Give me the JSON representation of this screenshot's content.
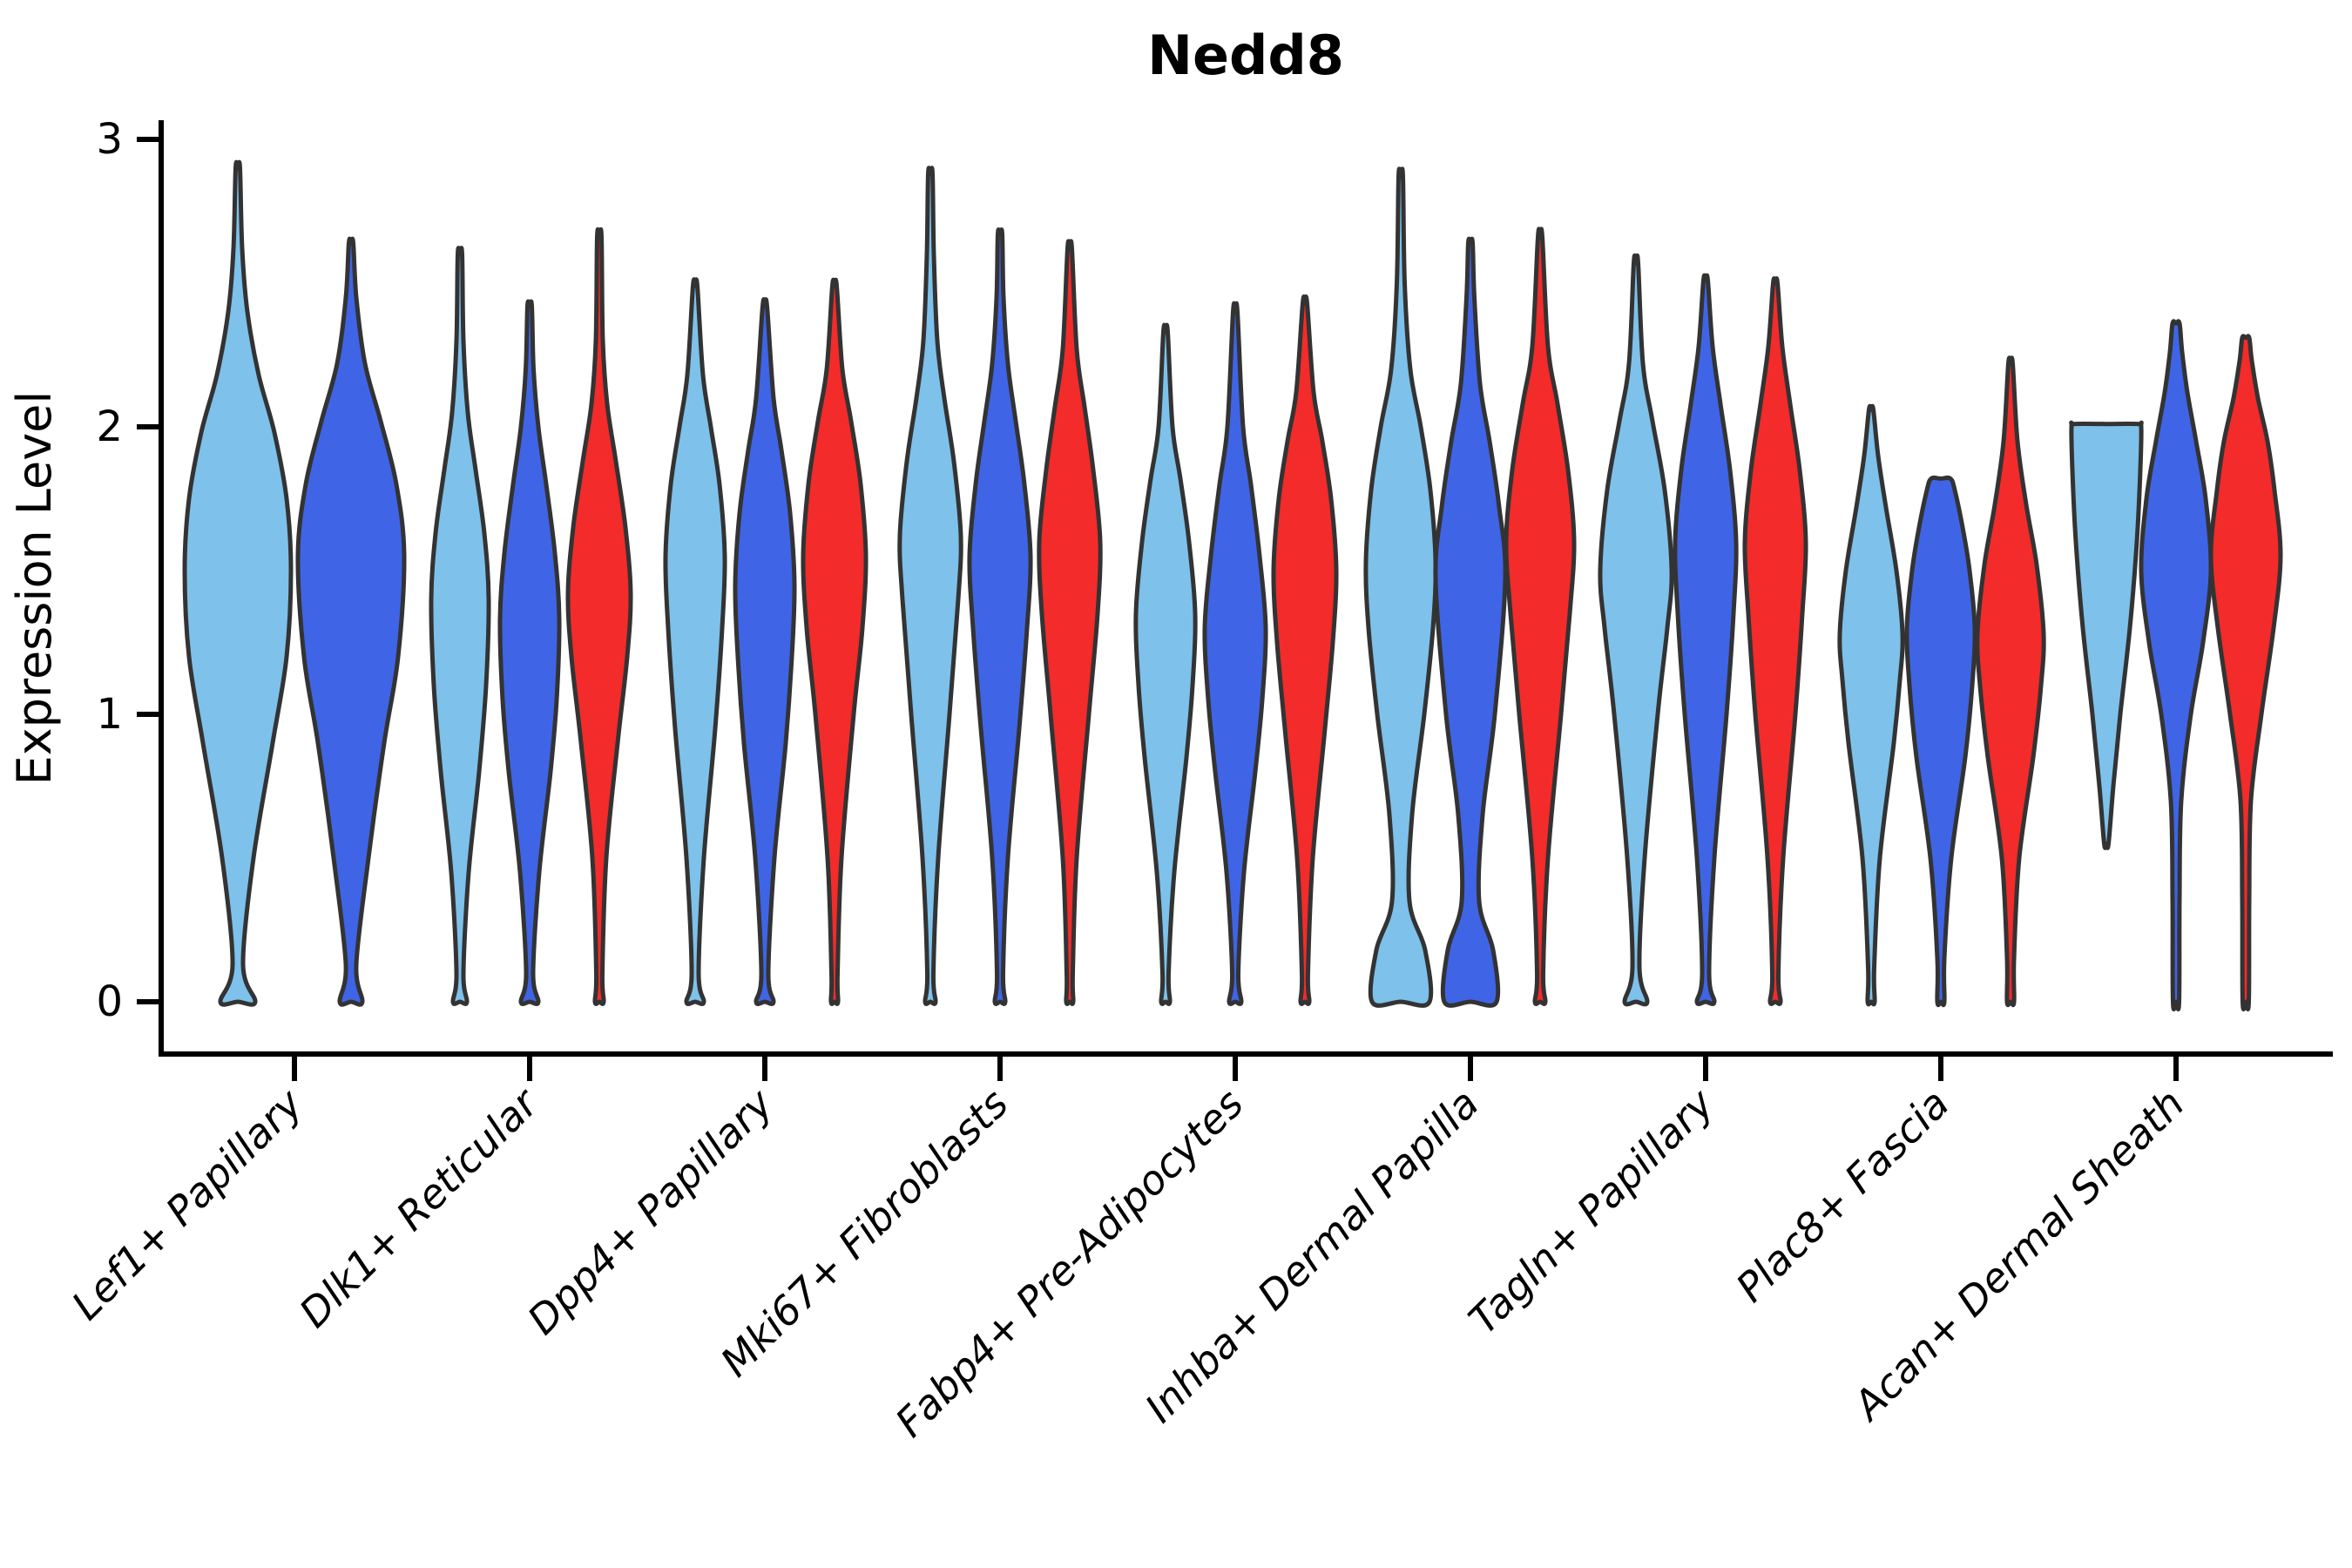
{
  "title": "Nedd8",
  "y_axis": {
    "label": "Expression Level",
    "ticks": [
      0,
      1,
      2,
      3
    ]
  },
  "chart_data": {
    "type": "violin",
    "title": "Nedd8",
    "xlabel": "",
    "ylabel": "Expression Level",
    "ylim": [
      0,
      3
    ],
    "yticks": [
      0,
      1,
      2,
      3
    ],
    "grid": false,
    "legend": "none",
    "categories": [
      "Lef1+ Papillary",
      "Dlk1+ Reticular",
      "Dpp4+ Papillary",
      "Mki67+ Fibroblasts",
      "Fabp4+ Pre-Adipocytes",
      "Inhba+ Dermal Papilla",
      "Tagln+ Papillary",
      "Plac8+ Fascia",
      "Acan+ Dermal Sheath"
    ],
    "splits": [
      {
        "name": "split-1",
        "color": "#7EC1EA"
      },
      {
        "name": "split-2",
        "color": "#3F65E6"
      },
      {
        "name": "split-3",
        "color": "#F32B2B"
      }
    ],
    "edge_color": "#333333",
    "violins": [
      {
        "category": 0,
        "split": 0,
        "max": 2.9,
        "profile": [
          [
            0,
            20
          ],
          [
            0.13,
            6
          ],
          [
            0.5,
            18
          ],
          [
            0.9,
            40
          ],
          [
            1.2,
            56
          ],
          [
            1.5,
            61
          ],
          [
            1.75,
            56
          ],
          [
            1.98,
            42
          ],
          [
            2.18,
            24
          ],
          [
            2.4,
            11
          ],
          [
            2.62,
            5
          ],
          [
            2.9,
            2.5
          ]
        ]
      },
      {
        "category": 0,
        "split": 1,
        "max": 2.64,
        "profile": [
          [
            0,
            13
          ],
          [
            0.13,
            6
          ],
          [
            0.5,
            20
          ],
          [
            0.9,
            38
          ],
          [
            1.2,
            54
          ],
          [
            1.55,
            61
          ],
          [
            1.8,
            52
          ],
          [
            2.02,
            34
          ],
          [
            2.22,
            16
          ],
          [
            2.45,
            6
          ],
          [
            2.64,
            2.5
          ]
        ]
      },
      {
        "category": 1,
        "split": 0,
        "max": 2.6,
        "profile": [
          [
            0,
            8
          ],
          [
            0.1,
            4
          ],
          [
            0.45,
            10
          ],
          [
            0.8,
            22
          ],
          [
            1.1,
            30
          ],
          [
            1.4,
            33
          ],
          [
            1.63,
            28
          ],
          [
            1.85,
            18
          ],
          [
            2.05,
            9
          ],
          [
            2.3,
            4
          ],
          [
            2.6,
            2.5
          ]
        ]
      },
      {
        "category": 1,
        "split": 1,
        "max": 2.42,
        "profile": [
          [
            0,
            10
          ],
          [
            0.1,
            4
          ],
          [
            0.45,
            11
          ],
          [
            0.8,
            24
          ],
          [
            1.05,
            31
          ],
          [
            1.33,
            34
          ],
          [
            1.56,
            29
          ],
          [
            1.8,
            19
          ],
          [
            2.0,
            10
          ],
          [
            2.2,
            4.5
          ],
          [
            2.42,
            2.5
          ]
        ]
      },
      {
        "category": 1,
        "split": 2,
        "max": 2.66,
        "profile": [
          [
            0,
            5
          ],
          [
            0.1,
            3.5
          ],
          [
            0.5,
            8
          ],
          [
            0.9,
            21
          ],
          [
            1.2,
            32
          ],
          [
            1.42,
            36
          ],
          [
            1.65,
            30
          ],
          [
            1.88,
            19
          ],
          [
            2.08,
            9
          ],
          [
            2.3,
            4
          ],
          [
            2.66,
            2.5
          ]
        ]
      },
      {
        "category": 2,
        "split": 0,
        "max": 2.49,
        "profile": [
          [
            0,
            10
          ],
          [
            0.1,
            4
          ],
          [
            0.5,
            10
          ],
          [
            0.95,
            23
          ],
          [
            1.3,
            31
          ],
          [
            1.55,
            34
          ],
          [
            1.8,
            28
          ],
          [
            2.0,
            18
          ],
          [
            2.18,
            9
          ],
          [
            2.49,
            2.5
          ]
        ]
      },
      {
        "category": 2,
        "split": 1,
        "max": 2.42,
        "profile": [
          [
            0,
            10
          ],
          [
            0.1,
            4
          ],
          [
            0.5,
            11
          ],
          [
            0.9,
            24
          ],
          [
            1.2,
            31
          ],
          [
            1.45,
            34
          ],
          [
            1.7,
            29
          ],
          [
            1.92,
            19
          ],
          [
            2.1,
            10
          ],
          [
            2.42,
            2.5
          ]
        ]
      },
      {
        "category": 2,
        "split": 2,
        "max": 2.49,
        "profile": [
          [
            0,
            4
          ],
          [
            0.1,
            3.5
          ],
          [
            0.5,
            8
          ],
          [
            1.0,
            22
          ],
          [
            1.3,
            32
          ],
          [
            1.55,
            36
          ],
          [
            1.8,
            30
          ],
          [
            2.02,
            19
          ],
          [
            2.2,
            9
          ],
          [
            2.49,
            2.5
          ]
        ]
      },
      {
        "category": 3,
        "split": 0,
        "max": 2.88,
        "profile": [
          [
            0,
            6
          ],
          [
            0.1,
            3.5
          ],
          [
            0.5,
            9
          ],
          [
            1.0,
            22
          ],
          [
            1.4,
            32
          ],
          [
            1.62,
            35
          ],
          [
            1.88,
            27
          ],
          [
            2.1,
            16
          ],
          [
            2.3,
            8
          ],
          [
            2.6,
            4
          ],
          [
            2.88,
            2.5
          ]
        ]
      },
      {
        "category": 3,
        "split": 1,
        "max": 2.67,
        "profile": [
          [
            0,
            6
          ],
          [
            0.1,
            3.5
          ],
          [
            0.5,
            9
          ],
          [
            0.95,
            22
          ],
          [
            1.3,
            31
          ],
          [
            1.55,
            35
          ],
          [
            1.8,
            28
          ],
          [
            2.02,
            18
          ],
          [
            2.22,
            9
          ],
          [
            2.45,
            4
          ],
          [
            2.67,
            2.5
          ]
        ]
      },
      {
        "category": 3,
        "split": 2,
        "max": 2.62,
        "profile": [
          [
            0,
            4
          ],
          [
            0.1,
            3.5
          ],
          [
            0.5,
            8
          ],
          [
            1.0,
            22
          ],
          [
            1.35,
            32
          ],
          [
            1.6,
            35
          ],
          [
            1.85,
            27
          ],
          [
            2.07,
            17
          ],
          [
            2.27,
            8
          ],
          [
            2.62,
            2.5
          ]
        ]
      },
      {
        "category": 4,
        "split": 0,
        "max": 2.33,
        "profile": [
          [
            0,
            5
          ],
          [
            0.1,
            3.5
          ],
          [
            0.45,
            10
          ],
          [
            0.85,
            24
          ],
          [
            1.1,
            31
          ],
          [
            1.35,
            34
          ],
          [
            1.6,
            27
          ],
          [
            1.82,
            17
          ],
          [
            2.0,
            8
          ],
          [
            2.33,
            2.5
          ]
        ]
      },
      {
        "category": 4,
        "split": 1,
        "max": 2.4,
        "profile": [
          [
            0,
            7
          ],
          [
            0.1,
            3.5
          ],
          [
            0.45,
            10
          ],
          [
            0.8,
            23
          ],
          [
            1.05,
            31
          ],
          [
            1.3,
            35
          ],
          [
            1.55,
            28
          ],
          [
            1.8,
            18
          ],
          [
            2.0,
            9
          ],
          [
            2.4,
            2.5
          ]
        ]
      },
      {
        "category": 4,
        "split": 2,
        "max": 2.43,
        "profile": [
          [
            0,
            5
          ],
          [
            0.1,
            3.5
          ],
          [
            0.5,
            9
          ],
          [
            0.95,
            23
          ],
          [
            1.25,
            32
          ],
          [
            1.5,
            36
          ],
          [
            1.75,
            30
          ],
          [
            1.95,
            20
          ],
          [
            2.12,
            10
          ],
          [
            2.43,
            2.5
          ]
        ]
      },
      {
        "category": 5,
        "split": 0,
        "max": 2.87,
        "profile": [
          [
            0,
            33
          ],
          [
            0.18,
            28
          ],
          [
            0.35,
            10
          ],
          [
            0.65,
            13
          ],
          [
            1.0,
            27
          ],
          [
            1.3,
            37
          ],
          [
            1.53,
            40
          ],
          [
            1.78,
            34
          ],
          [
            2.0,
            23
          ],
          [
            2.2,
            11
          ],
          [
            2.5,
            4.5
          ],
          [
            2.87,
            2.5
          ]
        ]
      },
      {
        "category": 5,
        "split": 1,
        "max": 2.64,
        "profile": [
          [
            0,
            30
          ],
          [
            0.18,
            26
          ],
          [
            0.35,
            10
          ],
          [
            0.65,
            14
          ],
          [
            1.0,
            28
          ],
          [
            1.47,
            40
          ],
          [
            1.72,
            33
          ],
          [
            1.95,
            22
          ],
          [
            2.15,
            11
          ],
          [
            2.45,
            4.5
          ],
          [
            2.64,
            2.5
          ]
        ]
      },
      {
        "category": 5,
        "split": 2,
        "max": 2.66,
        "profile": [
          [
            0,
            6
          ],
          [
            0.1,
            3.5
          ],
          [
            0.5,
            9
          ],
          [
            1.0,
            24
          ],
          [
            1.35,
            34
          ],
          [
            1.6,
            39
          ],
          [
            1.85,
            32
          ],
          [
            2.08,
            20
          ],
          [
            2.28,
            9
          ],
          [
            2.66,
            2.5
          ]
        ]
      },
      {
        "category": 6,
        "split": 0,
        "max": 2.57,
        "profile": [
          [
            0,
            13
          ],
          [
            0.12,
            4
          ],
          [
            0.5,
            10
          ],
          [
            1.0,
            25
          ],
          [
            1.3,
            36
          ],
          [
            1.5,
            41
          ],
          [
            1.78,
            33
          ],
          [
            2.02,
            19
          ],
          [
            2.22,
            8
          ],
          [
            2.57,
            2.5
          ]
        ]
      },
      {
        "category": 6,
        "split": 1,
        "max": 2.51,
        "profile": [
          [
            0,
            10
          ],
          [
            0.1,
            4
          ],
          [
            0.5,
            10
          ],
          [
            1.0,
            24
          ],
          [
            1.35,
            32
          ],
          [
            1.6,
            35
          ],
          [
            1.85,
            28
          ],
          [
            2.08,
            17
          ],
          [
            2.28,
            8
          ],
          [
            2.51,
            2.5
          ]
        ]
      },
      {
        "category": 6,
        "split": 2,
        "max": 2.5,
        "profile": [
          [
            0,
            6
          ],
          [
            0.1,
            3.5
          ],
          [
            0.5,
            9
          ],
          [
            1.0,
            23
          ],
          [
            1.35,
            31
          ],
          [
            1.6,
            35
          ],
          [
            1.85,
            28
          ],
          [
            2.08,
            17
          ],
          [
            2.28,
            8
          ],
          [
            2.5,
            2.5
          ]
        ]
      },
      {
        "category": 7,
        "split": 0,
        "max": 2.06,
        "profile": [
          [
            0,
            4
          ],
          [
            0.12,
            3.5
          ],
          [
            0.5,
            10
          ],
          [
            0.9,
            26
          ],
          [
            1.12,
            33
          ],
          [
            1.28,
            36
          ],
          [
            1.5,
            29
          ],
          [
            1.72,
            17
          ],
          [
            1.9,
            8
          ],
          [
            2.06,
            2.5
          ]
        ]
      },
      {
        "category": 7,
        "split": 1,
        "max": 1.82,
        "profile": [
          [
            0,
            4
          ],
          [
            0.15,
            4
          ],
          [
            0.5,
            12
          ],
          [
            0.85,
            28
          ],
          [
            1.1,
            36
          ],
          [
            1.3,
            39
          ],
          [
            1.5,
            33
          ],
          [
            1.65,
            25
          ],
          [
            1.78,
            16
          ],
          [
            1.82,
            11
          ]
        ]
      },
      {
        "category": 7,
        "split": 2,
        "max": 2.22,
        "profile": [
          [
            0,
            4
          ],
          [
            0.15,
            4
          ],
          [
            0.5,
            10
          ],
          [
            0.85,
            26
          ],
          [
            1.1,
            35
          ],
          [
            1.28,
            38
          ],
          [
            1.52,
            30
          ],
          [
            1.73,
            18
          ],
          [
            1.95,
            8
          ],
          [
            2.22,
            2.5
          ]
        ]
      },
      {
        "category": 8,
        "split": 0,
        "max": 2.01,
        "min": 0.55,
        "profile": [
          [
            0.55,
            2.5
          ],
          [
            0.75,
            8
          ],
          [
            1.0,
            16
          ],
          [
            1.3,
            27
          ],
          [
            1.6,
            35
          ],
          [
            1.85,
            39
          ],
          [
            2.0,
            40
          ],
          [
            2.01,
            36
          ]
        ]
      },
      {
        "category": 8,
        "split": 1,
        "max": 2.36,
        "profile": [
          [
            0,
            3.5
          ],
          [
            0.35,
            4
          ],
          [
            0.7,
            6
          ],
          [
            1.0,
            17
          ],
          [
            1.25,
            31
          ],
          [
            1.5,
            40
          ],
          [
            1.75,
            34
          ],
          [
            1.95,
            23
          ],
          [
            2.12,
            13
          ],
          [
            2.26,
            7
          ],
          [
            2.36,
            4
          ]
        ]
      },
      {
        "category": 8,
        "split": 2,
        "max": 2.31,
        "profile": [
          [
            0,
            3.5
          ],
          [
            0.35,
            4
          ],
          [
            0.7,
            6
          ],
          [
            1.0,
            18
          ],
          [
            1.3,
            32
          ],
          [
            1.55,
            40
          ],
          [
            1.78,
            33
          ],
          [
            1.95,
            25
          ],
          [
            2.1,
            14
          ],
          [
            2.23,
            7
          ],
          [
            2.31,
            4
          ]
        ]
      }
    ]
  }
}
